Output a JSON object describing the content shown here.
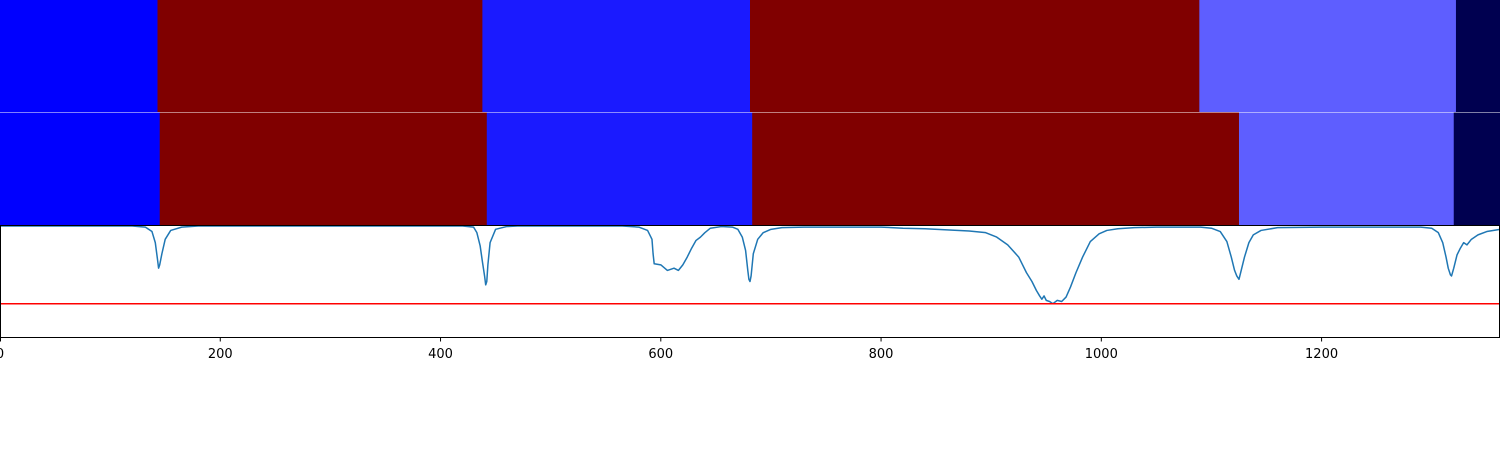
{
  "chart_data": [
    {
      "type": "heatmap",
      "panel": "segmentation-row-1",
      "segments": [
        {
          "start": 0,
          "end": 143,
          "color": "#0000ff"
        },
        {
          "start": 143,
          "end": 438,
          "color": "#800000"
        },
        {
          "start": 438,
          "end": 681,
          "color": "#1a1aff"
        },
        {
          "start": 681,
          "end": 1089,
          "color": "#800000"
        },
        {
          "start": 1089,
          "end": 1322,
          "color": "#5e5eff"
        },
        {
          "start": 1322,
          "end": 1362,
          "color": "#000050"
        }
      ]
    },
    {
      "type": "heatmap",
      "panel": "segmentation-row-2",
      "segments": [
        {
          "start": 0,
          "end": 145,
          "color": "#0000ff"
        },
        {
          "start": 145,
          "end": 442,
          "color": "#800000"
        },
        {
          "start": 442,
          "end": 683,
          "color": "#1a1aff"
        },
        {
          "start": 683,
          "end": 1125,
          "color": "#800000"
        },
        {
          "start": 1125,
          "end": 1320,
          "color": "#5e5eff"
        },
        {
          "start": 1320,
          "end": 1362,
          "color": "#000050"
        }
      ]
    },
    {
      "type": "line",
      "panel": "confidence-curve",
      "xlim": [
        0,
        1362
      ],
      "ylim": [
        0,
        1
      ],
      "x_ticks": [
        0,
        200,
        400,
        600,
        800,
        1000,
        1200
      ],
      "x_tick_labels": [
        "0",
        "200",
        "400",
        "600",
        "800",
        "1000",
        "1200"
      ],
      "grid": false,
      "series": [
        {
          "color": "#1f77b4",
          "points": [
            [
              0,
              1.0
            ],
            [
              120,
              1.0
            ],
            [
              132,
              0.99
            ],
            [
              138,
              0.95
            ],
            [
              141,
              0.85
            ],
            [
              143,
              0.7
            ],
            [
              144,
              0.62
            ],
            [
              145,
              0.65
            ],
            [
              147,
              0.75
            ],
            [
              150,
              0.88
            ],
            [
              155,
              0.96
            ],
            [
              165,
              0.99
            ],
            [
              180,
              1.0
            ],
            [
              420,
              1.0
            ],
            [
              430,
              0.99
            ],
            [
              433,
              0.94
            ],
            [
              436,
              0.82
            ],
            [
              438,
              0.68
            ],
            [
              440,
              0.55
            ],
            [
              441,
              0.47
            ],
            [
              442,
              0.5
            ],
            [
              443,
              0.65
            ],
            [
              445,
              0.85
            ],
            [
              450,
              0.97
            ],
            [
              460,
              0.995
            ],
            [
              470,
              1.0
            ],
            [
              565,
              1.0
            ],
            [
              580,
              0.99
            ],
            [
              588,
              0.96
            ],
            [
              592,
              0.88
            ],
            [
              593,
              0.75
            ],
            [
              594,
              0.66
            ],
            [
              600,
              0.65
            ],
            [
              606,
              0.6
            ],
            [
              612,
              0.62
            ],
            [
              616,
              0.6
            ],
            [
              620,
              0.65
            ],
            [
              624,
              0.72
            ],
            [
              628,
              0.8
            ],
            [
              632,
              0.87
            ],
            [
              636,
              0.9
            ],
            [
              640,
              0.94
            ],
            [
              645,
              0.98
            ],
            [
              655,
              0.995
            ],
            [
              665,
              0.99
            ],
            [
              670,
              0.97
            ],
            [
              674,
              0.9
            ],
            [
              677,
              0.78
            ],
            [
              679,
              0.6
            ],
            [
              680,
              0.52
            ],
            [
              681,
              0.5
            ],
            [
              682,
              0.55
            ],
            [
              684,
              0.75
            ],
            [
              688,
              0.88
            ],
            [
              693,
              0.94
            ],
            [
              700,
              0.97
            ],
            [
              710,
              0.985
            ],
            [
              730,
              0.99
            ],
            [
              800,
              0.99
            ],
            [
              820,
              0.98
            ],
            [
              840,
              0.975
            ],
            [
              860,
              0.965
            ],
            [
              880,
              0.955
            ],
            [
              895,
              0.94
            ],
            [
              905,
              0.9
            ],
            [
              915,
              0.83
            ],
            [
              925,
              0.72
            ],
            [
              932,
              0.58
            ],
            [
              937,
              0.5
            ],
            [
              941,
              0.42
            ],
            [
              944,
              0.37
            ],
            [
              946,
              0.34
            ],
            [
              948,
              0.37
            ],
            [
              950,
              0.33
            ],
            [
              953,
              0.32
            ],
            [
              956,
              0.3
            ],
            [
              960,
              0.33
            ],
            [
              964,
              0.32
            ],
            [
              968,
              0.36
            ],
            [
              972,
              0.45
            ],
            [
              977,
              0.58
            ],
            [
              983,
              0.72
            ],
            [
              990,
              0.86
            ],
            [
              998,
              0.93
            ],
            [
              1005,
              0.96
            ],
            [
              1015,
              0.975
            ],
            [
              1030,
              0.985
            ],
            [
              1050,
              0.99
            ],
            [
              1090,
              0.99
            ],
            [
              1100,
              0.98
            ],
            [
              1108,
              0.95
            ],
            [
              1114,
              0.86
            ],
            [
              1118,
              0.72
            ],
            [
              1121,
              0.6
            ],
            [
              1123,
              0.55
            ],
            [
              1125,
              0.52
            ],
            [
              1127,
              0.6
            ],
            [
              1130,
              0.72
            ],
            [
              1134,
              0.85
            ],
            [
              1138,
              0.92
            ],
            [
              1145,
              0.96
            ],
            [
              1160,
              0.985
            ],
            [
              1200,
              0.99
            ],
            [
              1290,
              0.99
            ],
            [
              1300,
              0.98
            ],
            [
              1306,
              0.94
            ],
            [
              1310,
              0.85
            ],
            [
              1313,
              0.72
            ],
            [
              1315,
              0.62
            ],
            [
              1317,
              0.56
            ],
            [
              1318,
              0.55
            ],
            [
              1320,
              0.62
            ],
            [
              1323,
              0.74
            ],
            [
              1326,
              0.8
            ],
            [
              1329,
              0.85
            ],
            [
              1332,
              0.83
            ],
            [
              1336,
              0.88
            ],
            [
              1342,
              0.92
            ],
            [
              1350,
              0.95
            ],
            [
              1362,
              0.97
            ]
          ]
        },
        {
          "color": "#ff0000",
          "points": [
            [
              0,
              0.3
            ],
            [
              1362,
              0.3
            ]
          ]
        }
      ]
    }
  ]
}
